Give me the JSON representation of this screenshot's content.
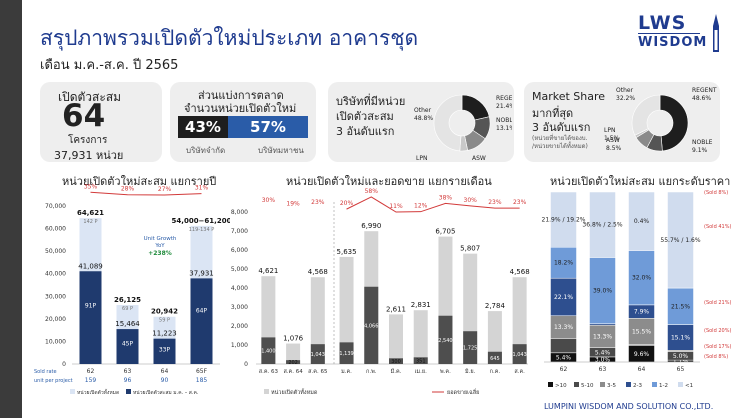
{
  "header": {
    "title": "สรุปภาพรวมเปิดตัวใหม่ประเภท อาคารชุด",
    "subtitle": "เดือน ม.ค.-ส.ค. ปี 2565",
    "logo_line1": "LWS",
    "logo_line2": "WISDOM",
    "footer": "LUMPINI WISDOM AND SOLUTION CO.,LTD."
  },
  "cards": {
    "projects": {
      "label": "เปิดตัวสะสม",
      "value": "64",
      "unit_projects": "โครงการ",
      "units": "37,931 หน่วย"
    },
    "share": {
      "title1": "ส่วนแบ่งการตลาด",
      "title2": "จำนวนหน่วยเปิดตัวใหม่",
      "private_pct": "43%",
      "public_pct": "57%",
      "private_label": "บริษัทจำกัด",
      "public_label": "บริษัทมหาชน"
    },
    "top3_units": {
      "title1": "บริษัทที่มีหน่วย",
      "title2": "เปิดตัวสะสม",
      "title3": "3 อันดับแรก",
      "slices": [
        {
          "name": "REGENT",
          "pct": "21.4%",
          "value": 21.4,
          "color": "#1e1e1e"
        },
        {
          "name": "NOBLE",
          "pct": "13.1%",
          "value": 13.1,
          "color": "#555555"
        },
        {
          "name": "ASW",
          "pct": "12.3%",
          "value": 12.3,
          "color": "#8a8a8a"
        },
        {
          "name": "LPN",
          "pct": "4.5%",
          "value": 4.5,
          "color": "#c9c9c9"
        },
        {
          "name": "Other",
          "pct": "48.8%",
          "value": 48.8,
          "color": "#e4e4e4"
        }
      ]
    },
    "top3_sales": {
      "title1": "Market Share",
      "title2": "มากที่สุด",
      "title3": "3 อันดับแรก",
      "note1": "(หน่วยที่ขายได้ของบ.",
      "note2": "/หน่วยขายได้ทั้งหมด)",
      "slices": [
        {
          "name": "REGENT",
          "pct": "48.6%",
          "value": 48.6,
          "color": "#1e1e1e"
        },
        {
          "name": "NOBLE",
          "pct": "9.1%",
          "value": 9.1,
          "color": "#555555"
        },
        {
          "name": "ASW",
          "pct": "8.5%",
          "value": 8.5,
          "color": "#8a8a8a"
        },
        {
          "name": "LPN",
          "pct": "1.5%",
          "value": 1.5,
          "color": "#c9c9c9"
        },
        {
          "name": "Other",
          "pct": "32.2%",
          "value": 32.2,
          "color": "#e4e4e4"
        }
      ]
    }
  },
  "sections": {
    "yearly": "หน่วยเปิดตัวใหม่สะสม แยกรายปี",
    "monthly": "หน่วยเปิดตัวใหม่และยอดขาย แยกรายเดือน",
    "price": "หน่วยเปิดตัวใหม่สะสม แยกระดับราคา"
  },
  "chart_data": [
    {
      "type": "bar",
      "title": "หน่วยเปิดตัวใหม่สะสม แยกรายปี",
      "categories": [
        "62",
        "63",
        "64",
        "65F"
      ],
      "ylim": [
        0,
        70000
      ],
      "yticks": [
        "0",
        "10,000",
        "20,000",
        "30,000",
        "40,000",
        "50,000",
        "60,000",
        "70,000"
      ],
      "series": [
        {
          "name": "หน่วยเปิดตัวทั้งหมด",
          "values": [
            64621,
            26125,
            20942,
            61200
          ],
          "labels": [
            "64,621",
            "26,125",
            "20,942",
            "54,000−61,200"
          ],
          "projects": [
            "142 P",
            "69 P",
            "59 P",
            "119-134 P"
          ]
        },
        {
          "name": "หน่วยเปิดตัวสะสม ม.ค. – ส.ค.",
          "values": [
            41089,
            15464,
            11223,
            37931
          ],
          "labels": [
            "41,089",
            "15,464",
            "11,223",
            "37,931"
          ],
          "projects": [
            "91P",
            "45P",
            "33P",
            "64P"
          ]
        }
      ],
      "sold_rate": [
        "35%",
        "28%",
        "27%",
        "31%"
      ],
      "sold_rate_values": [
        35,
        28,
        27,
        31
      ],
      "sold_rate_label": "Sold rate",
      "unit_per_project_label": "unit per project",
      "unit_per_project": [
        "159",
        "96",
        "90",
        "185"
      ],
      "annotation": {
        "line1": "Unit Growth",
        "line2": "YoY",
        "line3": "+238%"
      }
    },
    {
      "type": "bar",
      "title": "หน่วยเปิดตัวใหม่และยอดขาย แยกรายเดือน",
      "ylim": [
        0,
        8000
      ],
      "yticks": [
        "0",
        "1,000",
        "2,000",
        "3,000",
        "4,000",
        "5,000",
        "6,000",
        "7,000",
        "8,000"
      ],
      "categories": [
        "ส.ค. 63",
        "ส.ค. 64",
        "ส.ค. 65",
        "ม.ค.",
        "ก.พ.",
        "มี.ค.",
        "เม.ย.",
        "พ.ค.",
        "มิ.ย.",
        "ก.ค.",
        "ส.ค."
      ],
      "series": [
        {
          "name": "หน่วยเปิดตัวทั้งหมด",
          "values": [
            4621,
            1076,
            4568,
            5635,
            6990,
            2611,
            2831,
            6705,
            5807,
            2784,
            4568
          ],
          "labels": [
            "4,621",
            "1,076",
            "4,568",
            "5,635",
            "6,990",
            "2,611",
            "2,831",
            "6,705",
            "5,807",
            "2,784",
            "4,568"
          ]
        },
        {
          "name": "ยอดขายเฉลี่ย",
          "values": [
            1400,
            202,
            1043,
            1139,
            4066,
            300,
            351,
            2540,
            1725,
            645,
            1043
          ],
          "labels": [
            "1,400",
            "202",
            "1,043",
            "1,139",
            "4,066",
            "300",
            "351",
            "2,540",
            "1,725",
            "645",
            "1,043"
          ]
        }
      ],
      "sold_rate": [
        "30%",
        "19%",
        "23%",
        "20%",
        "58%",
        "11%",
        "12%",
        "38%",
        "30%",
        "23%",
        "23%"
      ],
      "sold_rate_values": [
        30,
        19,
        23,
        20,
        58,
        11,
        12,
        38,
        30,
        23,
        23
      ],
      "legend": [
        "หน่วยเปิดตัวทั้งหมด",
        "ยอดขายเฉลี่ย"
      ]
    },
    {
      "type": "bar",
      "stacked": true,
      "title": "หน่วยเปิดตัวใหม่สะสม แยกระดับราคา",
      "categories": [
        "62",
        "63",
        "64",
        "65"
      ],
      "legend": [
        ">10",
        "5-10",
        "3-5",
        "2-3",
        "1-2",
        "<1"
      ],
      "series": [
        {
          "name": ">10",
          "color": "#111111",
          "values": [
            5.4,
            3.0,
            9.6,
            1.1
          ],
          "labels": [
            "5.4%",
            "3.0%",
            "9.6%",
            "1.1%"
          ]
        },
        {
          "name": "5-10",
          "color": "#4a4a4a",
          "values": [
            8.5,
            5.4,
            0.6,
            5.0
          ],
          "labels": [
            "",
            "5.4%",
            "",
            "5.0%"
          ]
        },
        {
          "name": "3-5",
          "color": "#8c8c8c",
          "values": [
            13.3,
            13.3,
            15.5,
            0.8
          ],
          "labels": [
            "13.3%",
            "13.3%",
            "15.5%",
            ""
          ]
        },
        {
          "name": "2-3",
          "color": "#2e4f8f",
          "values": [
            22.1,
            0.8,
            7.9,
            15.1
          ],
          "labels": [
            "22.1%",
            "",
            "7.9%",
            "15.1%"
          ]
        },
        {
          "name": "1-2",
          "color": "#6f9bd8",
          "values": [
            18.2,
            39.0,
            32.0,
            21.5
          ],
          "labels": [
            "18.2%",
            "39.0%",
            "32.0%",
            "21.5%"
          ]
        },
        {
          "name": "<1",
          "color": "#d0dcee",
          "values": [
            32.5,
            38.5,
            34.4,
            56.5
          ],
          "labels": [
            "21.9% / 19.2%",
            "36.8% / 2.5%",
            "0.4%",
            "55.7% / 1.6%"
          ]
        }
      ],
      "sold_labels": [
        "(Sold 8%)",
        "(Sold 41%)",
        "(Sold 21%)",
        "(Sold 20%)",
        "(Sold 17%)",
        "(Sold 8%)"
      ]
    }
  ]
}
